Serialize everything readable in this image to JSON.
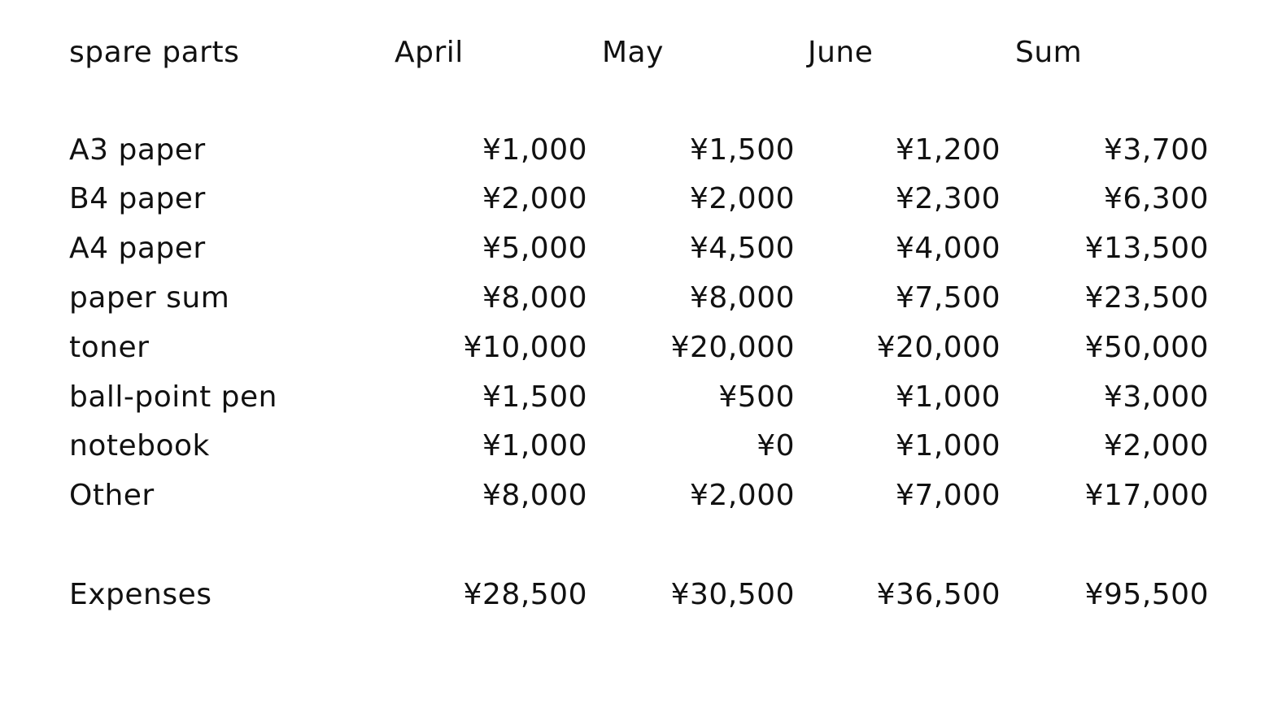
{
  "table": {
    "header": {
      "label": "spare parts",
      "columns": [
        "April",
        "May",
        "June",
        "Sum"
      ]
    },
    "rows": [
      {
        "label": "A3 paper",
        "values": [
          "¥1,000",
          "¥1,500",
          "¥1,200",
          "¥3,700"
        ]
      },
      {
        "label": "B4 paper",
        "values": [
          "¥2,000",
          "¥2,000",
          "¥2,300",
          "¥6,300"
        ]
      },
      {
        "label": "A4 paper",
        "values": [
          "¥5,000",
          "¥4,500",
          "¥4,000",
          "¥13,500"
        ]
      },
      {
        "label": "paper sum",
        "values": [
          "¥8,000",
          "¥8,000",
          "¥7,500",
          "¥23,500"
        ]
      },
      {
        "label": "toner",
        "values": [
          "¥10,000",
          "¥20,000",
          "¥20,000",
          "¥50,000"
        ]
      },
      {
        "label": "ball-point pen",
        "values": [
          "¥1,500",
          "¥500",
          "¥1,000",
          "¥3,000"
        ]
      },
      {
        "label": "notebook",
        "values": [
          "¥1,000",
          "¥0",
          "¥1,000",
          "¥2,000"
        ]
      },
      {
        "label": "Other",
        "values": [
          "¥8,000",
          "¥2,000",
          "¥7,000",
          "¥17,000"
        ]
      }
    ],
    "total": {
      "label": "Expenses",
      "values": [
        "¥28,500",
        "¥30,500",
        "¥36,500",
        "¥95,500"
      ]
    }
  }
}
